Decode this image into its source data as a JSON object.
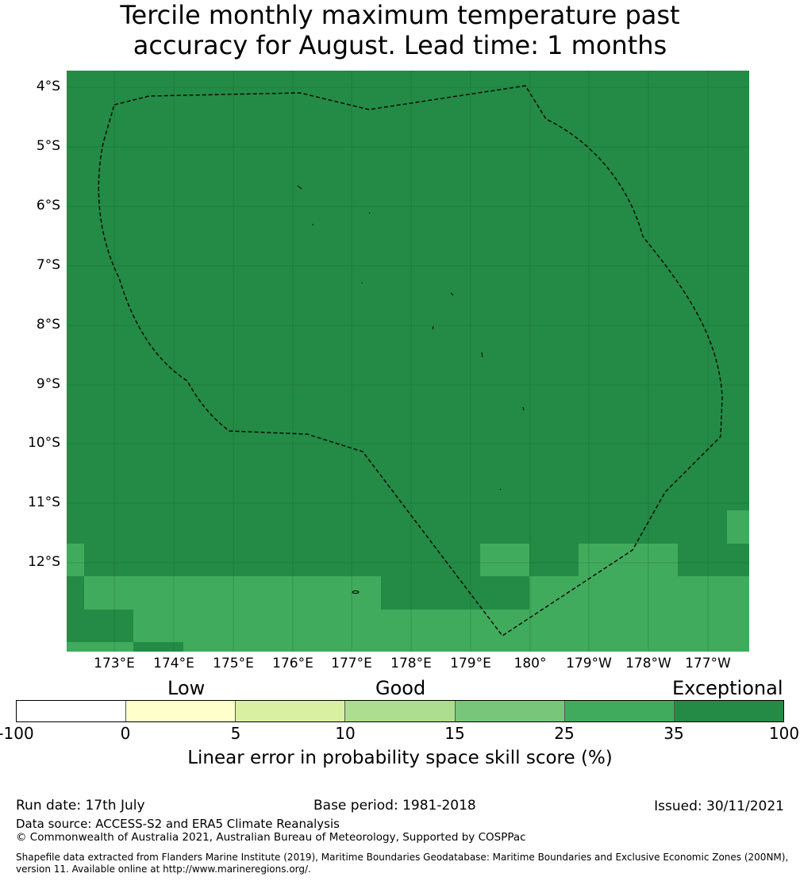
{
  "title": {
    "line1": "Tercile monthly maximum temperature past",
    "line2": "accuracy for August. Lead time: 1 months"
  },
  "map": {
    "lat_labels": [
      "4°S",
      "5°S",
      "6°S",
      "7°S",
      "8°S",
      "9°S",
      "10°S",
      "11°S",
      "12°S"
    ],
    "lon_labels": [
      "173°E",
      "174°E",
      "175°E",
      "176°E",
      "177°E",
      "178°E",
      "179°E",
      "180°",
      "179°W",
      "178°W",
      "177°W"
    ],
    "colors": {
      "exceptional": "#238b45",
      "good_high": "#41ab5d",
      "boundary": "#000000"
    }
  },
  "colorbar": {
    "categories": [
      "Low",
      "Good",
      "Exceptional"
    ],
    "ticks": [
      "-100",
      "0",
      "5",
      "10",
      "15",
      "25",
      "35",
      "100"
    ],
    "colors": [
      "#ffffff",
      "#ffffcc",
      "#d9f0a3",
      "#addd8e",
      "#78c679",
      "#41ab5d",
      "#238b45"
    ],
    "label": "Linear error in probability space skill score (%)"
  },
  "footer": {
    "run_date": "Run date: 17th July",
    "base_period": "Base period: 1981-2018",
    "issued": "Issued: 30/11/2021",
    "data_source": "Data source: ACCESS-S2 and ERA5 Climate Reanalysis",
    "copyright": "© Commonwealth of Australia 2021, Australian Bureau of Meteorology, Supported by COSPPac",
    "shapefile_line1": "Shapefile data extracted from Flanders Marine Institute (2019), Maritime Boundaries Geodatabase: Maritime Boundaries and Exclusive Economic Zones (200NM),",
    "shapefile_line2": "version 11. Available online at http://www.marineregions.org/."
  }
}
